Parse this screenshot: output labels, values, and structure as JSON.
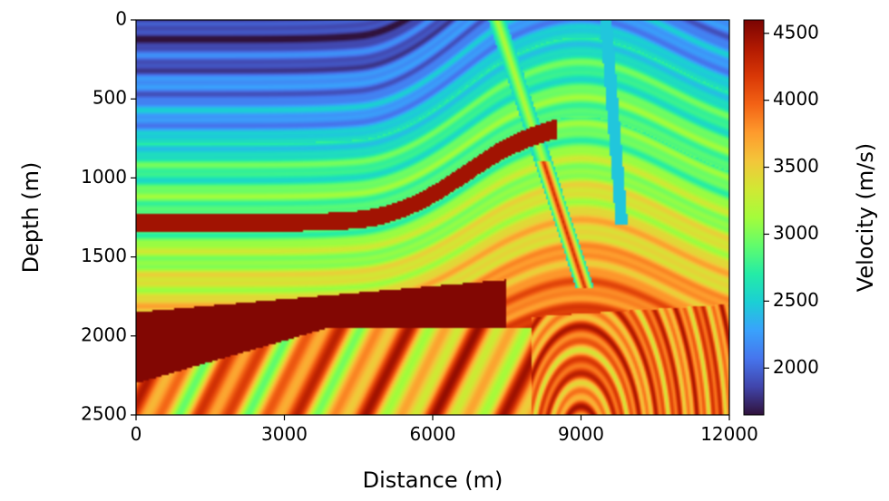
{
  "chart_data": {
    "type": "heatmap",
    "subtype": "seismic velocity model",
    "xlabel": "Distance (m)",
    "ylabel": "Depth (m)",
    "colorbar_label": "Velocity (m/s)",
    "xlim": [
      0,
      12000
    ],
    "ylim": [
      2500,
      0
    ],
    "y_axis_inverted": true,
    "x_ticks": [
      0,
      3000,
      6000,
      9000,
      12000
    ],
    "x_tick_labels": [
      "0",
      "3000",
      "6000",
      "9000",
      "12000"
    ],
    "y_ticks": [
      0,
      500,
      1000,
      1500,
      2000,
      2500
    ],
    "y_tick_labels": [
      "0",
      "500",
      "1000",
      "1500",
      "2000",
      "2500"
    ],
    "colorbar_range": [
      1650,
      4600
    ],
    "colorbar_ticks": [
      2000,
      2500,
      3000,
      3500,
      4000,
      4500
    ],
    "colorbar_tick_labels": [
      "2000",
      "2500",
      "3000",
      "3500",
      "4000",
      "4500"
    ],
    "colormap": "turbo",
    "colormap_stops": [
      "#30123b",
      "#4145ab",
      "#4675ed",
      "#39a2fc",
      "#1bcfd4",
      "#24eca6",
      "#61fc6c",
      "#a4fc3b",
      "#d1e834",
      "#f3c63a",
      "#fe9b2d",
      "#f36315",
      "#d93806",
      "#b11901",
      "#7a0403"
    ],
    "grid": false,
    "layers_approx": [
      {
        "region": "shallow (0-800 m), west",
        "velocity": 1900
      },
      {
        "region": "middle (800-1250 m)",
        "velocity": 2800
      },
      {
        "region": "high-velocity band (~1250 m), west",
        "velocity": 4450
      },
      {
        "region": "1300-1750 m, west",
        "velocity": 3100
      },
      {
        "region": "thrust wedge (1850-2300 m), west",
        "velocity": 4550
      },
      {
        "region": "deep dipping beds (2300-2500 m)",
        "velocity": 3900
      },
      {
        "region": "anticline core (9000 m, 2100-2500 m)",
        "velocity": 4300
      }
    ]
  }
}
